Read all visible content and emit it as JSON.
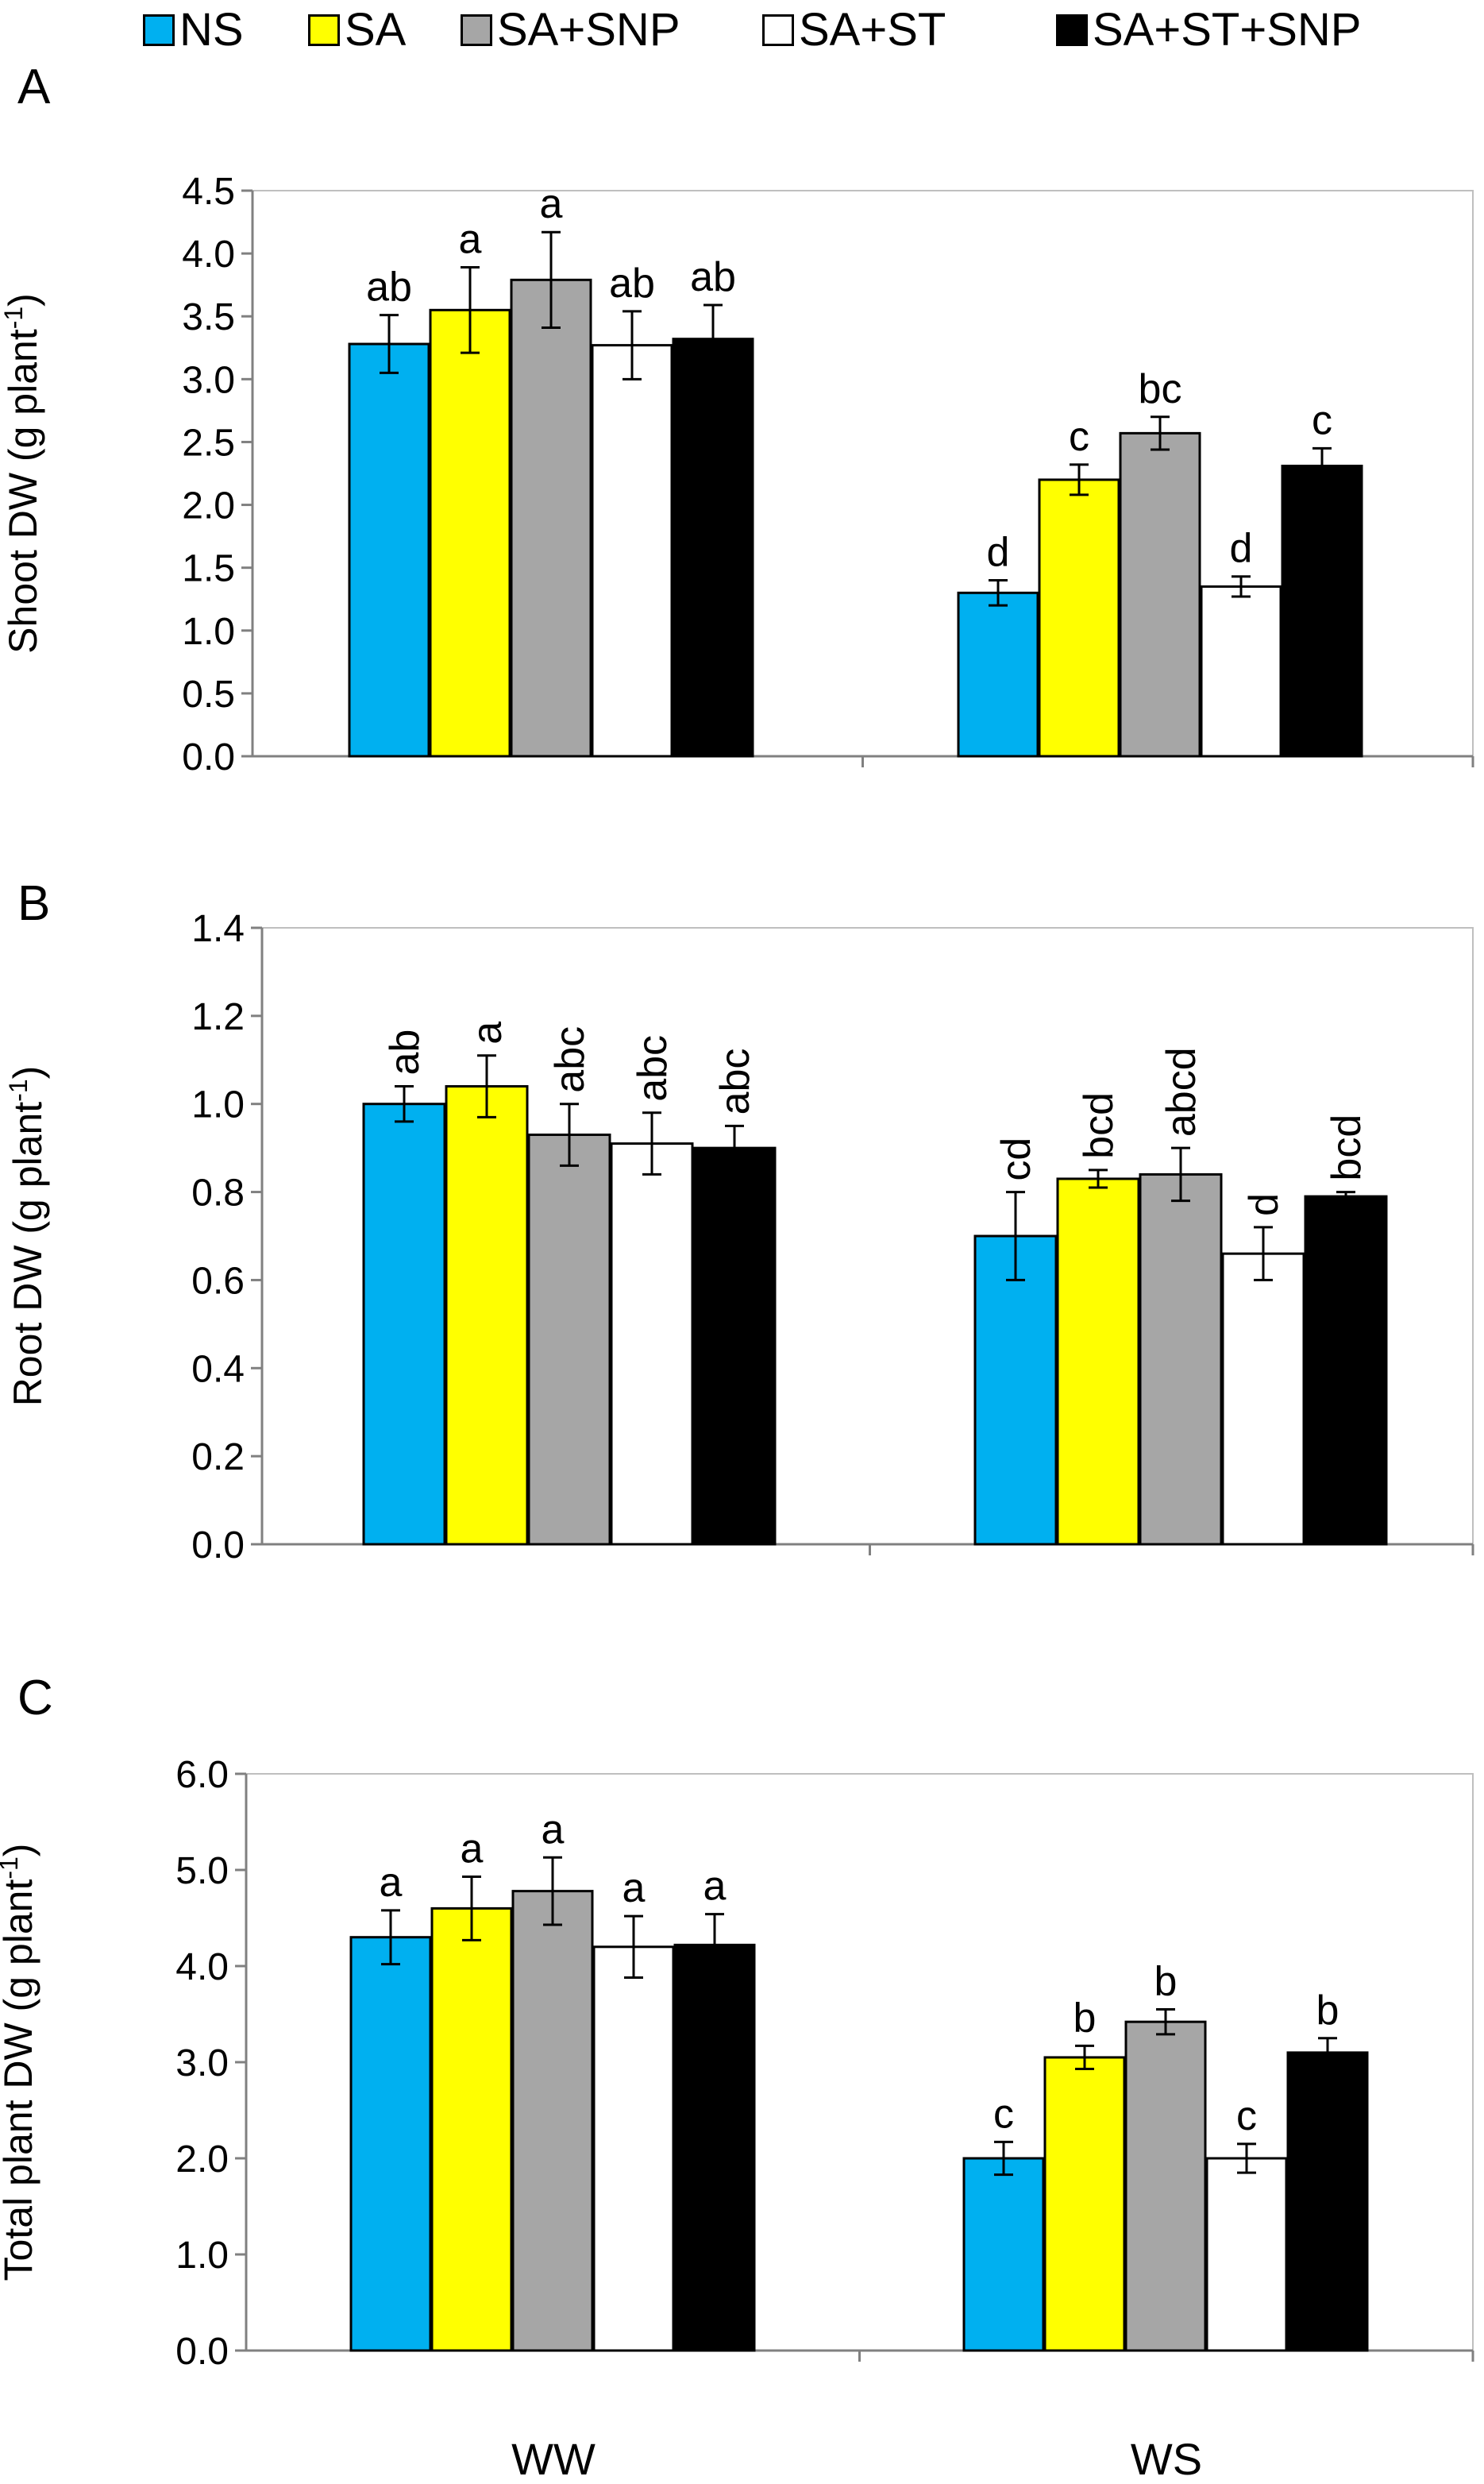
{
  "legend": {
    "items": [
      {
        "label": "NS",
        "color": "#00b0f0"
      },
      {
        "label": "SA",
        "color": "#ffff00"
      },
      {
        "label": "SA+SNP",
        "color": "#a6a6a6"
      },
      {
        "label": "SA+ST",
        "color": "#ffffff"
      },
      {
        "label": "SA+ST+SNP",
        "color": "#000000"
      }
    ]
  },
  "chart_data": [
    {
      "type": "bar",
      "panel": "A",
      "ylabel": "Shoot DW (g plant",
      "ylabel_sup": "-1",
      "ylabel_close": ")",
      "ylim": [
        0,
        4.5
      ],
      "yticks": [
        "0.0",
        "0.5",
        "1.0",
        "1.5",
        "2.0",
        "2.5",
        "3.0",
        "3.5",
        "4.0",
        "4.5"
      ],
      "categories": [
        "WW",
        "WS"
      ],
      "show_categories": false,
      "label_rotation": 0,
      "series": [
        {
          "name": "NS",
          "color": "#00b0f0",
          "values": [
            3.28,
            1.3
          ],
          "errors": [
            0.23,
            0.1
          ],
          "labels": [
            "ab",
            "d"
          ]
        },
        {
          "name": "SA",
          "color": "#ffff00",
          "values": [
            3.55,
            2.2
          ],
          "errors": [
            0.34,
            0.12
          ],
          "labels": [
            "a",
            "c"
          ]
        },
        {
          "name": "SA+SNP",
          "color": "#a6a6a6",
          "values": [
            3.79,
            2.57
          ],
          "errors": [
            0.38,
            0.13
          ],
          "labels": [
            "a",
            "bc"
          ]
        },
        {
          "name": "SA+ST",
          "color": "#ffffff",
          "values": [
            3.27,
            1.35
          ],
          "errors": [
            0.27,
            0.08
          ],
          "labels": [
            "ab",
            "d"
          ]
        },
        {
          "name": "SA+ST+SNP",
          "color": "#000000",
          "values": [
            3.32,
            2.31
          ],
          "errors": [
            0.27,
            0.14
          ],
          "labels": [
            "ab",
            "c"
          ]
        }
      ]
    },
    {
      "type": "bar",
      "panel": "B",
      "ylabel": "Root DW (g plant",
      "ylabel_sup": "-1",
      "ylabel_close": ")",
      "ylim": [
        0,
        1.4
      ],
      "yticks": [
        "0.0",
        "0.2",
        "0.4",
        "0.6",
        "0.8",
        "1.0",
        "1.2",
        "1.4"
      ],
      "categories": [
        "WW",
        "WS"
      ],
      "show_categories": false,
      "label_rotation": -90,
      "series": [
        {
          "name": "NS",
          "color": "#00b0f0",
          "values": [
            1.0,
            0.7
          ],
          "errors": [
            0.04,
            0.1
          ],
          "labels": [
            "ab",
            "cd"
          ]
        },
        {
          "name": "SA",
          "color": "#ffff00",
          "values": [
            1.04,
            0.83
          ],
          "errors": [
            0.07,
            0.02
          ],
          "labels": [
            "a",
            "bcd"
          ]
        },
        {
          "name": "SA+SNP",
          "color": "#a6a6a6",
          "values": [
            0.93,
            0.84
          ],
          "errors": [
            0.07,
            0.06
          ],
          "labels": [
            "abc",
            "abcd"
          ]
        },
        {
          "name": "SA+ST",
          "color": "#ffffff",
          "values": [
            0.91,
            0.66
          ],
          "errors": [
            0.07,
            0.06
          ],
          "labels": [
            "abc",
            "d"
          ]
        },
        {
          "name": "SA+ST+SNP",
          "color": "#000000",
          "values": [
            0.9,
            0.79
          ],
          "errors": [
            0.05,
            0.01
          ],
          "labels": [
            "abc",
            "bcd"
          ]
        }
      ]
    },
    {
      "type": "bar",
      "panel": "C",
      "ylabel": "Total plant DW (g plant",
      "ylabel_sup": "-1",
      "ylabel_close": ")",
      "ylim": [
        0,
        6.0
      ],
      "yticks": [
        "0.0",
        "1.0",
        "2.0",
        "3.0",
        "4.0",
        "5.0",
        "6.0"
      ],
      "categories": [
        "WW",
        "WS"
      ],
      "show_categories": true,
      "label_rotation": 0,
      "series": [
        {
          "name": "NS",
          "color": "#00b0f0",
          "values": [
            4.3,
            2.0
          ],
          "errors": [
            0.28,
            0.17
          ],
          "labels": [
            "a",
            "c"
          ]
        },
        {
          "name": "SA",
          "color": "#ffff00",
          "values": [
            4.6,
            3.05
          ],
          "errors": [
            0.33,
            0.12
          ],
          "labels": [
            "a",
            "b"
          ]
        },
        {
          "name": "SA+SNP",
          "color": "#a6a6a6",
          "values": [
            4.78,
            3.42
          ],
          "errors": [
            0.35,
            0.13
          ],
          "labels": [
            "a",
            "b"
          ]
        },
        {
          "name": "SA+ST",
          "color": "#ffffff",
          "values": [
            4.2,
            2.0
          ],
          "errors": [
            0.32,
            0.15
          ],
          "labels": [
            "a",
            "c"
          ]
        },
        {
          "name": "SA+ST+SNP",
          "color": "#000000",
          "values": [
            4.22,
            3.1
          ],
          "errors": [
            0.32,
            0.15
          ],
          "labels": [
            "a",
            "b"
          ]
        }
      ]
    }
  ]
}
